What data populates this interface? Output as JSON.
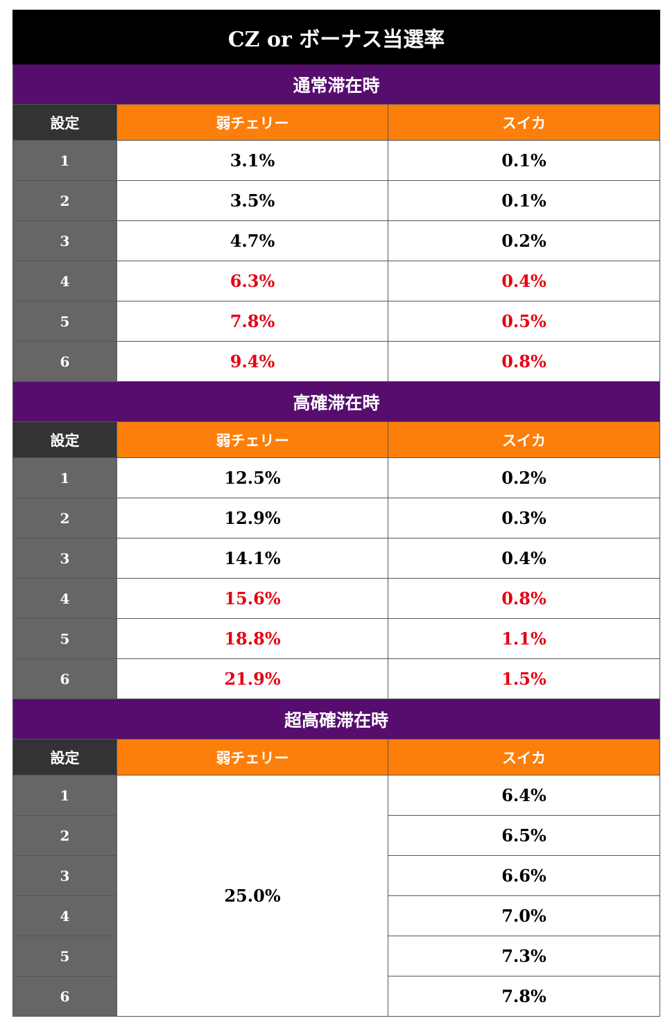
{
  "title": "CZ or ボーナス当選率",
  "headers": {
    "setting": "設定",
    "col1": "弱チェリー",
    "col2": "スイカ"
  },
  "highlight_color": "#e60012",
  "sections": [
    {
      "name": "通常滞在時",
      "rows": [
        {
          "setting": "1",
          "col1": "3.1%",
          "col2": "0.1%",
          "highlight": false
        },
        {
          "setting": "2",
          "col1": "3.5%",
          "col2": "0.1%",
          "highlight": false
        },
        {
          "setting": "3",
          "col1": "4.7%",
          "col2": "0.2%",
          "highlight": false
        },
        {
          "setting": "4",
          "col1": "6.3%",
          "col2": "0.4%",
          "highlight": true
        },
        {
          "setting": "5",
          "col1": "7.8%",
          "col2": "0.5%",
          "highlight": true
        },
        {
          "setting": "6",
          "col1": "9.4%",
          "col2": "0.8%",
          "highlight": true
        }
      ]
    },
    {
      "name": "高確滞在時",
      "rows": [
        {
          "setting": "1",
          "col1": "12.5%",
          "col2": "0.2%",
          "highlight": false
        },
        {
          "setting": "2",
          "col1": "12.9%",
          "col2": "0.3%",
          "highlight": false
        },
        {
          "setting": "3",
          "col1": "14.1%",
          "col2": "0.4%",
          "highlight": false
        },
        {
          "setting": "4",
          "col1": "15.6%",
          "col2": "0.8%",
          "highlight": true
        },
        {
          "setting": "5",
          "col1": "18.8%",
          "col2": "1.1%",
          "highlight": true
        },
        {
          "setting": "6",
          "col1": "21.9%",
          "col2": "1.5%",
          "highlight": true
        }
      ]
    },
    {
      "name": "超高確滞在時",
      "merged_col1": "25.0%",
      "rows": [
        {
          "setting": "1",
          "col2": "6.4%"
        },
        {
          "setting": "2",
          "col2": "6.5%"
        },
        {
          "setting": "3",
          "col2": "6.6%"
        },
        {
          "setting": "4",
          "col2": "7.0%"
        },
        {
          "setting": "5",
          "col2": "7.3%"
        },
        {
          "setting": "6",
          "col2": "7.8%"
        }
      ]
    }
  ]
}
